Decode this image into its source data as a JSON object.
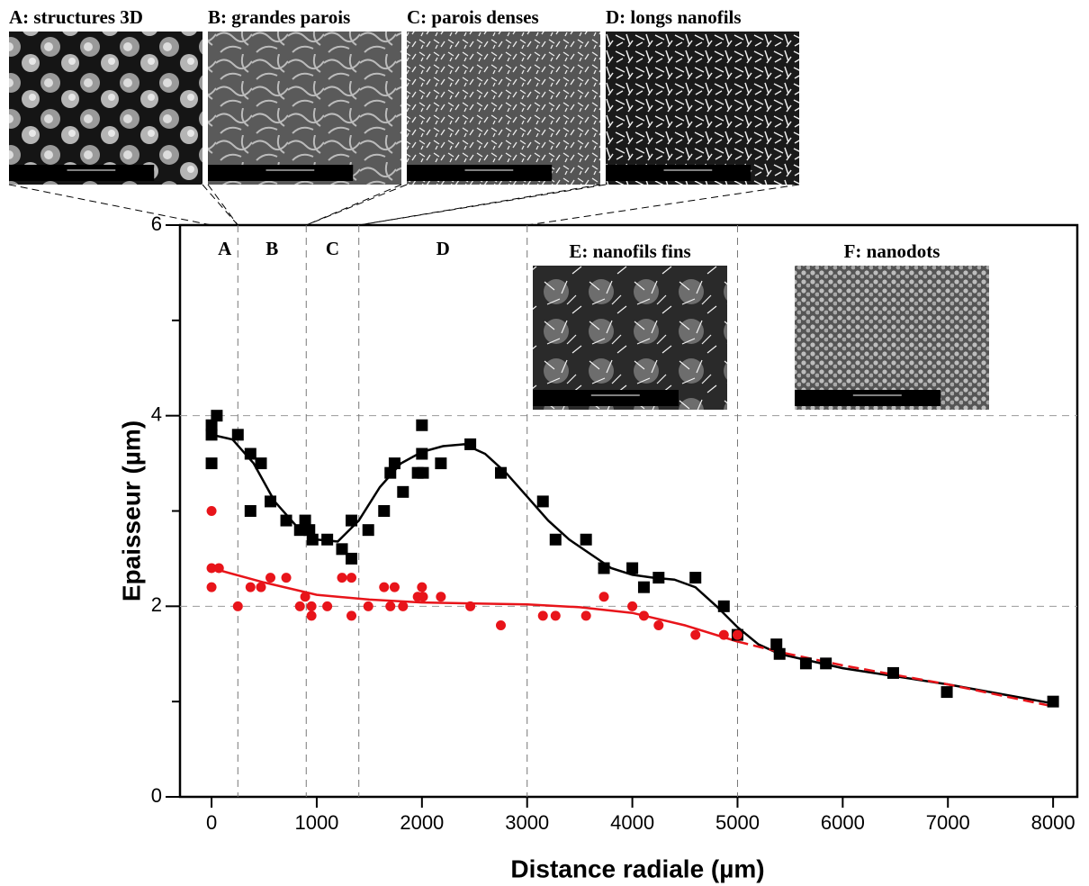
{
  "chart_data": {
    "type": "scatter",
    "xlabel": "Distance radiale (µm)",
    "ylabel": "Epaisseur (µm)",
    "xlim": [
      -300,
      8230
    ],
    "ylim": [
      0,
      6
    ],
    "xticks": [
      0,
      1000,
      2000,
      3000,
      4000,
      5000,
      6000,
      7000,
      8000
    ],
    "yticks": [
      0,
      2,
      4,
      6
    ],
    "y_minor_ticks": [
      1,
      3,
      5
    ],
    "grid_y": [
      2,
      4
    ],
    "region_lines": [
      250,
      900,
      1400,
      3000,
      5000
    ],
    "regions": [
      {
        "label": "A",
        "from": 0,
        "to": 250
      },
      {
        "label": "B",
        "from": 250,
        "to": 900
      },
      {
        "label": "C",
        "from": 900,
        "to": 1400
      },
      {
        "label": "D",
        "from": 1400,
        "to": 3000
      }
    ],
    "micrographs": [
      {
        "caption": "A: structures 3D",
        "texture": "blobs",
        "from": 0,
        "to": 250
      },
      {
        "caption": "B: grandes parois",
        "texture": "walls",
        "from": 250,
        "to": 900
      },
      {
        "caption": "C: parois denses",
        "texture": "dense",
        "from": 900,
        "to": 1400
      },
      {
        "caption": "D: longs nanofils",
        "texture": "wires",
        "from": 1400,
        "to": 3000
      },
      {
        "caption": "E: nanofils fins",
        "texture": "fine"
      },
      {
        "caption": "F: nanodots",
        "texture": "dots"
      }
    ],
    "series": [
      {
        "kind": "scatter",
        "marker": "square",
        "color": "#000000",
        "x": [
          0,
          0,
          0,
          50,
          250,
          370,
          470,
          370,
          560,
          710,
          840,
          890,
          930,
          960,
          1100,
          1240,
          1330,
          1330,
          1490,
          1640,
          1700,
          1740,
          1820,
          1960,
          2010,
          2000,
          2000,
          2180,
          2460,
          2750,
          3150,
          3270,
          3560,
          3730,
          4000,
          4110,
          4250,
          4600,
          4870,
          5000,
          5370,
          5400,
          5650,
          5840,
          6480,
          6990,
          8000
        ],
        "values": [
          3.9,
          3.8,
          3.5,
          4.0,
          3.8,
          3.6,
          3.5,
          3.0,
          3.1,
          2.9,
          2.8,
          2.9,
          2.8,
          2.7,
          2.7,
          2.6,
          2.9,
          2.5,
          2.8,
          3.0,
          3.4,
          3.5,
          3.2,
          3.4,
          3.4,
          3.6,
          3.9,
          3.5,
          3.7,
          3.4,
          3.1,
          2.7,
          2.7,
          2.4,
          2.4,
          2.2,
          2.3,
          2.3,
          2.0,
          1.7,
          1.6,
          1.5,
          1.4,
          1.4,
          1.3,
          1.1,
          1.0
        ]
      },
      {
        "kind": "scatter",
        "marker": "circle",
        "color": "#e8141a",
        "x": [
          0,
          0,
          70,
          0,
          250,
          370,
          470,
          560,
          710,
          840,
          890,
          950,
          950,
          1100,
          1240,
          1330,
          1330,
          1490,
          1640,
          1700,
          1740,
          1820,
          1960,
          2010,
          2000,
          2180,
          2460,
          2750,
          3150,
          3270,
          3560,
          3730,
          4000,
          4110,
          4250,
          4600,
          4870,
          5000
        ],
        "values": [
          3.0,
          2.4,
          2.4,
          2.2,
          2.0,
          2.2,
          2.2,
          2.3,
          2.3,
          2.0,
          2.1,
          1.9,
          2.0,
          2.0,
          2.3,
          2.3,
          1.9,
          2.0,
          2.2,
          2.0,
          2.2,
          2.0,
          2.1,
          2.1,
          2.2,
          2.1,
          2.0,
          1.8,
          1.9,
          1.9,
          1.9,
          2.1,
          2.0,
          1.9,
          1.8,
          1.7,
          1.7,
          1.7
        ]
      },
      {
        "kind": "line",
        "dash": false,
        "color": "#000000",
        "x": [
          0,
          200,
          400,
          600,
          800,
          1000,
          1200,
          1400,
          1600,
          1800,
          2000,
          2200,
          2400,
          2600,
          2800,
          3000,
          3200,
          3400,
          3600,
          3800,
          4000,
          4200,
          4400,
          4600,
          4800,
          5000,
          5200,
          5400,
          6000,
          7000,
          8000
        ],
        "values": [
          3.8,
          3.75,
          3.5,
          3.1,
          2.85,
          2.7,
          2.68,
          2.9,
          3.25,
          3.5,
          3.62,
          3.68,
          3.7,
          3.6,
          3.4,
          3.15,
          2.9,
          2.7,
          2.55,
          2.4,
          2.33,
          2.3,
          2.28,
          2.2,
          2.0,
          1.78,
          1.6,
          1.5,
          1.35,
          1.18,
          0.98
        ]
      },
      {
        "kind": "line",
        "dash": false,
        "color": "#e8141a",
        "x": [
          0,
          500,
          1000,
          1500,
          2000,
          2500,
          3000,
          3500,
          4000,
          4500,
          5000
        ],
        "values": [
          2.4,
          2.25,
          2.12,
          2.07,
          2.04,
          2.03,
          2.02,
          1.99,
          1.93,
          1.8,
          1.63
        ]
      },
      {
        "kind": "line",
        "dash": true,
        "color": "#e8141a",
        "x": [
          5000,
          5400,
          6000,
          7000,
          8000
        ],
        "values": [
          1.63,
          1.52,
          1.38,
          1.18,
          0.95
        ]
      }
    ]
  }
}
